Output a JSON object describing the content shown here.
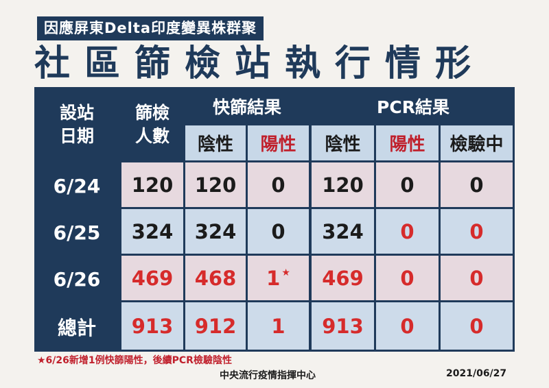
{
  "header": {
    "subtitle": "因應屏東Delta印度變異株群聚",
    "title": "社區篩檢站執行情形"
  },
  "table": {
    "col_date_line1": "設站",
    "col_date_line2": "日期",
    "col_count_line1": "篩檢",
    "col_count_line2": "人數",
    "group_rapid": "快篩結果",
    "group_pcr": "PCR結果",
    "sub_rapid_negative": "陰性",
    "sub_rapid_positive": "陽性",
    "sub_pcr_negative": "陰性",
    "sub_pcr_positive": "陽性",
    "sub_pcr_pending": "檢驗中",
    "rows": [
      {
        "date": "6/24",
        "screened": "120",
        "rapid_negative": "120",
        "rapid_positive": "0",
        "pcr_negative": "120",
        "pcr_positive": "0",
        "pcr_pending": "0"
      },
      {
        "date": "6/25",
        "screened": "324",
        "rapid_negative": "324",
        "rapid_positive": "0",
        "pcr_negative": "324",
        "pcr_positive": "0",
        "pcr_pending": "0"
      },
      {
        "date": "6/26",
        "screened": "469",
        "rapid_negative": "468",
        "rapid_positive": "1",
        "rapid_positive_mark": "★",
        "pcr_negative": "469",
        "pcr_positive": "0",
        "pcr_pending": "0"
      },
      {
        "date": "總計",
        "screened": "913",
        "rapid_negative": "912",
        "rapid_positive": "1",
        "pcr_negative": "913",
        "pcr_positive": "0",
        "pcr_pending": "0"
      }
    ]
  },
  "footer": {
    "note": "★6/26新增1例快篩陽性，後續PCR檢驗陰性",
    "organization": "中央流行疫情指揮中心",
    "date": "2021/06/27"
  },
  "colors": {
    "navy": "#1f3a5a",
    "header_blue": "#c8d8e8",
    "row_pink": "#e7d9df",
    "row_blue": "#cddbea",
    "positive_red": "#c0202c",
    "value_red": "#d62b2b"
  }
}
